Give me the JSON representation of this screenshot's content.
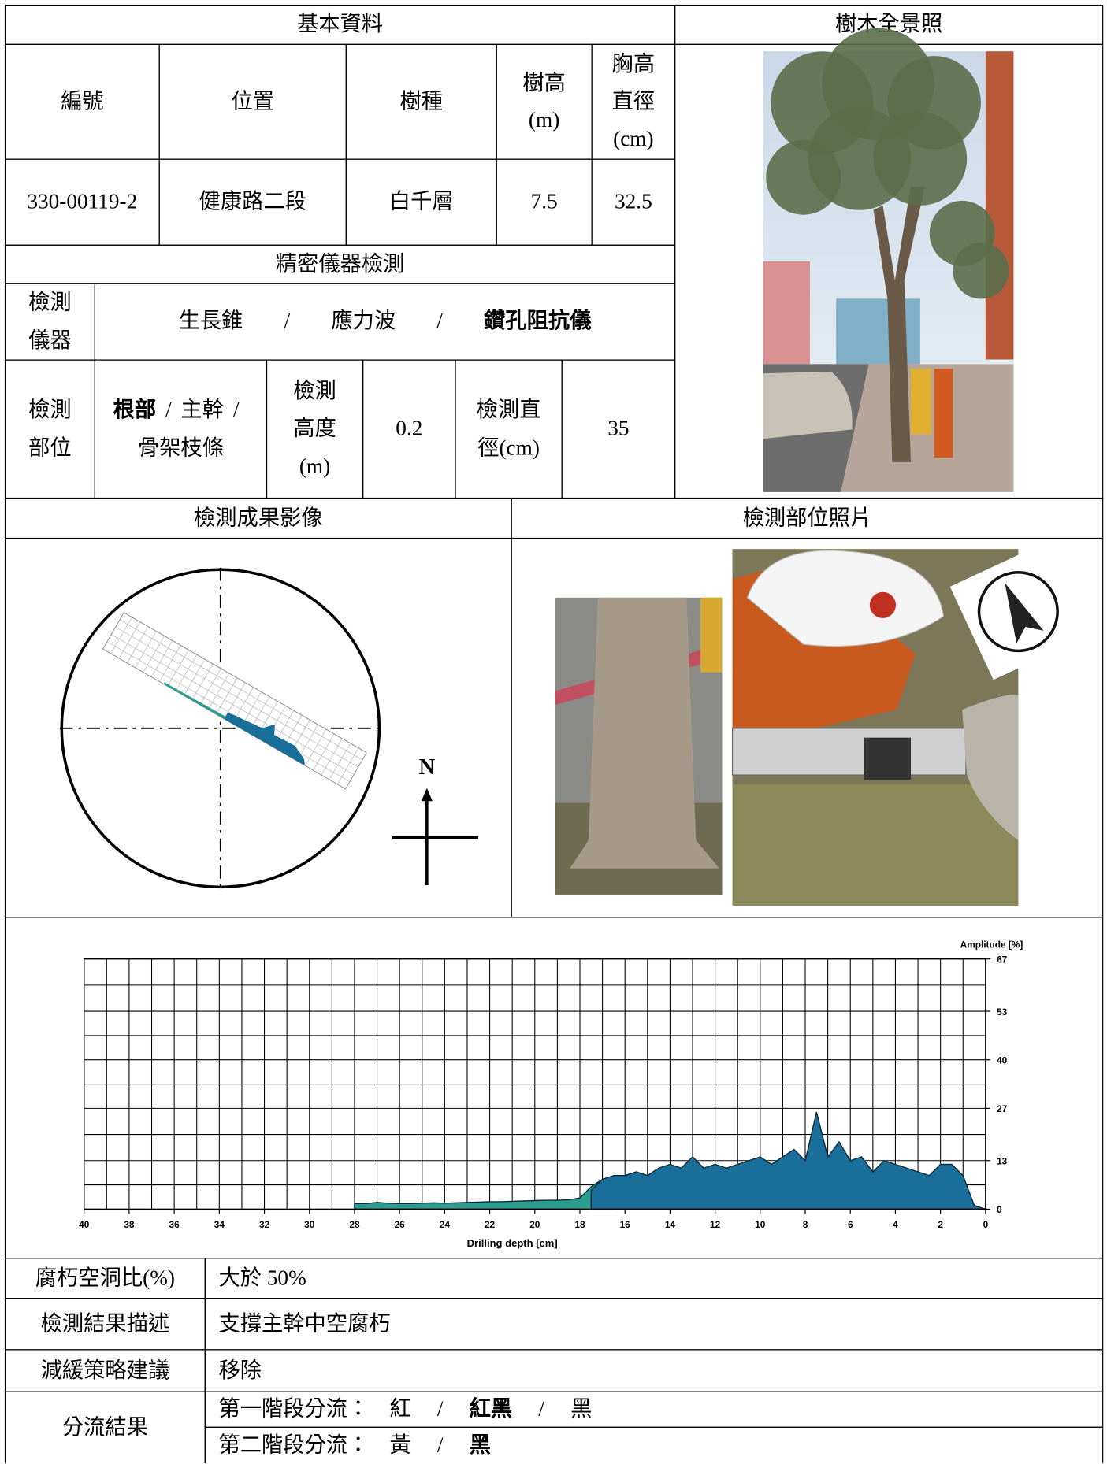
{
  "header": {
    "basic_info": "基本資料",
    "panorama": "樹木全景照"
  },
  "basic_table": {
    "columns": [
      "編號",
      "位置",
      "樹種",
      "樹高(m)",
      "胸高直徑(cm)"
    ],
    "row": [
      "330-00119-2",
      "健康路二段",
      "白千層",
      7.5,
      32.5
    ]
  },
  "precision": {
    "title": "精密儀器檢測",
    "instrument_label": "檢測儀器",
    "instruments": [
      "生長錐",
      "應力波",
      "鑽孔阻抗儀"
    ],
    "instrument_selected": 2,
    "separator": "/",
    "part_label": "檢測部位",
    "parts": [
      "根部",
      "主幹",
      "骨架枝條"
    ],
    "part_selected": 0,
    "height_label": "檢測高度(m)",
    "height": 0.2,
    "diameter_label": "檢測直徑(cm)",
    "diameter": 35
  },
  "images": {
    "result_title": "檢測成果影像",
    "photo_title": "檢測部位照片",
    "north": "N"
  },
  "chart_data": {
    "type": "area",
    "x_label": "Drilling depth [cm]",
    "y_label": "Amplitude [%]",
    "x": [
      28,
      27.5,
      27,
      26.5,
      26,
      25.5,
      25,
      24.5,
      24,
      23.5,
      23,
      22.5,
      22,
      21.5,
      21,
      20.5,
      20,
      19.5,
      19,
      18.5,
      18,
      17.5,
      17,
      16.5,
      16,
      15.5,
      15,
      14.5,
      14,
      13.5,
      13,
      12.5,
      12,
      11.5,
      11,
      10.5,
      10,
      9.5,
      9,
      8.5,
      8,
      7.5,
      7,
      6.5,
      6,
      5.5,
      5,
      4.5,
      4,
      3.5,
      3,
      2.5,
      2,
      1.5,
      1,
      0.5,
      0
    ],
    "series": [
      {
        "color": "#2a9d8f",
        "values": [
          1.5,
          1.5,
          1.8,
          1.6,
          1.5,
          1.5,
          1.6,
          1.7,
          1.6,
          1.7,
          1.8,
          1.9,
          2,
          2,
          2.1,
          2.2,
          2.3,
          2.4,
          2.4,
          2.5,
          3,
          6,
          8,
          8.5,
          null,
          null,
          null,
          null,
          null,
          null,
          null,
          null,
          null,
          null,
          null,
          null,
          null,
          null,
          null,
          null,
          null,
          null,
          null,
          null,
          null,
          null,
          null,
          null,
          null,
          null,
          null,
          null,
          null,
          null,
          null,
          null,
          null
        ]
      },
      {
        "color": "#1a6f9a",
        "values": [
          null,
          null,
          null,
          null,
          null,
          null,
          null,
          null,
          null,
          null,
          null,
          null,
          null,
          null,
          null,
          null,
          null,
          null,
          null,
          null,
          null,
          5,
          8,
          9,
          9,
          10,
          9,
          11,
          12,
          11,
          14,
          11,
          12,
          11,
          12,
          13,
          14,
          12,
          14,
          16,
          13,
          26,
          14,
          18,
          13,
          14,
          10,
          13,
          12,
          11,
          10,
          9,
          12,
          12,
          9,
          1,
          0
        ]
      }
    ],
    "xlim": [
      40,
      0
    ],
    "xticks": [
      40,
      38,
      36,
      34,
      32,
      30,
      28,
      26,
      24,
      22,
      20,
      18,
      16,
      14,
      12,
      10,
      8,
      6,
      4,
      2,
      0
    ],
    "ylim": [
      0,
      67
    ],
    "yticks": [
      0,
      13,
      27,
      40,
      53,
      67
    ],
    "grid": true
  },
  "results": [
    {
      "label": "腐朽空洞比(%)",
      "value": "大於 50%"
    },
    {
      "label": "檢測結果描述",
      "value": "支撐主幹中空腐朽"
    },
    {
      "label": "減緩策略建議",
      "value": "移除"
    }
  ],
  "triage": {
    "label": "分流結果",
    "stages": [
      {
        "label": "第一階段分流：",
        "options": [
          "紅",
          "紅黑",
          "黑"
        ],
        "selected": 1
      },
      {
        "label": "第二階段分流：",
        "options": [
          "黃",
          "黑"
        ],
        "selected": 1
      }
    ]
  }
}
